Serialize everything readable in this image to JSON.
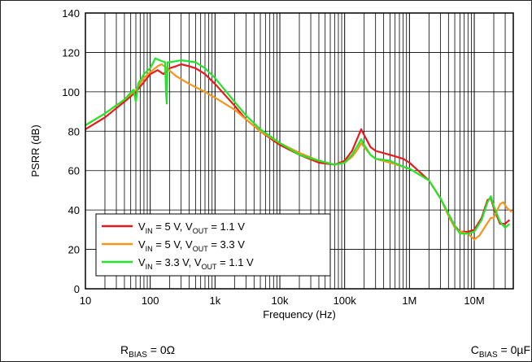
{
  "chart_data": {
    "type": "line",
    "xscale": "log",
    "xlabel": "Frequency (Hz)",
    "ylabel": "PSRR (dB)",
    "xlim": [
      10,
      40000000
    ],
    "ylim": [
      0,
      140
    ],
    "grid": true,
    "legend_position": "bottom-left",
    "xticks": [
      {
        "value": 10,
        "label": "10"
      },
      {
        "value": 100,
        "label": "100"
      },
      {
        "value": 1000,
        "label": "1k"
      },
      {
        "value": 10000,
        "label": "10k"
      },
      {
        "value": 100000,
        "label": "100k"
      },
      {
        "value": 1000000,
        "label": "1M"
      },
      {
        "value": 10000000,
        "label": "10M"
      }
    ],
    "yticks": [
      0,
      20,
      40,
      60,
      80,
      100,
      120,
      140
    ],
    "series": [
      {
        "name": {
          "pre": "V",
          "s1": "IN",
          "mid": " = 5 V, V",
          "s2": "OUT",
          "post": " = 1.1 V"
        },
        "color": "#e8191c",
        "points": [
          [
            10,
            81
          ],
          [
            20,
            87
          ],
          [
            40,
            95
          ],
          [
            60,
            100
          ],
          [
            80,
            105
          ],
          [
            100,
            109
          ],
          [
            130,
            111
          ],
          [
            160,
            109
          ],
          [
            200,
            112
          ],
          [
            250,
            113
          ],
          [
            300,
            114
          ],
          [
            400,
            113
          ],
          [
            500,
            112
          ],
          [
            700,
            109
          ],
          [
            1000,
            104
          ],
          [
            2000,
            93
          ],
          [
            3000,
            86
          ],
          [
            5000,
            80
          ],
          [
            10000,
            73
          ],
          [
            20000,
            68
          ],
          [
            40000,
            64
          ],
          [
            70000,
            63
          ],
          [
            100000,
            65
          ],
          [
            130000,
            70
          ],
          [
            160000,
            77
          ],
          [
            180000,
            81
          ],
          [
            200000,
            78
          ],
          [
            250000,
            72
          ],
          [
            300000,
            70
          ],
          [
            500000,
            68
          ],
          [
            800000,
            66
          ],
          [
            1000000,
            64
          ],
          [
            2000000,
            55
          ],
          [
            3000000,
            46
          ],
          [
            4000000,
            38
          ],
          [
            5000000,
            32
          ],
          [
            6000000,
            29
          ],
          [
            8000000,
            29
          ],
          [
            10000000,
            30
          ],
          [
            13000000,
            36
          ],
          [
            16000000,
            45
          ],
          [
            18000000,
            46
          ],
          [
            20000000,
            41
          ],
          [
            25000000,
            33
          ],
          [
            30000000,
            33
          ],
          [
            35000000,
            35
          ]
        ]
      },
      {
        "name": {
          "pre": "V",
          "s1": "IN",
          "mid": " = 5 V, V",
          "s2": "OUT",
          "post": " = 3.3 V"
        },
        "color": "#f7941d",
        "points": [
          [
            10,
            83
          ],
          [
            20,
            89
          ],
          [
            40,
            96
          ],
          [
            60,
            101
          ],
          [
            80,
            107
          ],
          [
            100,
            110
          ],
          [
            130,
            113
          ],
          [
            150,
            114
          ],
          [
            180,
            112
          ],
          [
            250,
            108
          ],
          [
            400,
            104
          ],
          [
            700,
            100
          ],
          [
            1000,
            97
          ],
          [
            2000,
            91
          ],
          [
            3000,
            86
          ],
          [
            5000,
            80
          ],
          [
            10000,
            74
          ],
          [
            20000,
            69
          ],
          [
            40000,
            65
          ],
          [
            70000,
            63
          ],
          [
            100000,
            64
          ],
          [
            130000,
            67
          ],
          [
            160000,
            71
          ],
          [
            180000,
            74
          ],
          [
            200000,
            72
          ],
          [
            250000,
            68
          ],
          [
            300000,
            66
          ],
          [
            500000,
            64
          ],
          [
            800000,
            62
          ],
          [
            1000000,
            61
          ],
          [
            2000000,
            55
          ],
          [
            3000000,
            46
          ],
          [
            4000000,
            37
          ],
          [
            5000000,
            31
          ],
          [
            6000000,
            29
          ],
          [
            8000000,
            28
          ],
          [
            10000000,
            25
          ],
          [
            12000000,
            27
          ],
          [
            15000000,
            32
          ],
          [
            18000000,
            36
          ],
          [
            20000000,
            36
          ],
          [
            25000000,
            43
          ],
          [
            28000000,
            44
          ],
          [
            32000000,
            41
          ],
          [
            38000000,
            39
          ]
        ]
      },
      {
        "name": {
          "pre": "V",
          "s1": "IN",
          "mid": " = 3.3 V, V",
          "s2": "OUT",
          "post": " = 1.1 V"
        },
        "color": "#22e52a",
        "points": [
          [
            10,
            83
          ],
          [
            20,
            89
          ],
          [
            40,
            96
          ],
          [
            55,
            101
          ],
          [
            60,
            95
          ],
          [
            65,
            104
          ],
          [
            80,
            109
          ],
          [
            100,
            112
          ],
          [
            120,
            117
          ],
          [
            140,
            116
          ],
          [
            170,
            115
          ],
          [
            175,
            100
          ],
          [
            180,
            94
          ],
          [
            185,
            115
          ],
          [
            200,
            115
          ],
          [
            300,
            116
          ],
          [
            500,
            115
          ],
          [
            700,
            112
          ],
          [
            1000,
            107
          ],
          [
            2000,
            95
          ],
          [
            3000,
            88
          ],
          [
            5000,
            81
          ],
          [
            10000,
            74
          ],
          [
            20000,
            68
          ],
          [
            40000,
            65
          ],
          [
            70000,
            63
          ],
          [
            100000,
            64
          ],
          [
            130000,
            68
          ],
          [
            160000,
            73
          ],
          [
            180000,
            76
          ],
          [
            200000,
            73
          ],
          [
            250000,
            68
          ],
          [
            300000,
            66
          ],
          [
            500000,
            65
          ],
          [
            800000,
            62
          ],
          [
            1000000,
            61
          ],
          [
            2000000,
            55
          ],
          [
            3000000,
            46
          ],
          [
            4000000,
            38
          ],
          [
            5000000,
            32
          ],
          [
            6000000,
            28
          ],
          [
            8000000,
            28
          ],
          [
            10000000,
            29
          ],
          [
            13000000,
            35
          ],
          [
            16000000,
            44
          ],
          [
            18000000,
            47
          ],
          [
            20000000,
            42
          ],
          [
            25000000,
            34
          ],
          [
            30000000,
            31
          ],
          [
            35000000,
            33
          ]
        ]
      }
    ]
  },
  "footer": {
    "rbias": {
      "main": "R",
      "sub": "BIAS",
      "rest": " = 0Ω"
    },
    "cbias": {
      "main": "C",
      "sub": "BIAS",
      "rest": " = 0µF"
    }
  }
}
